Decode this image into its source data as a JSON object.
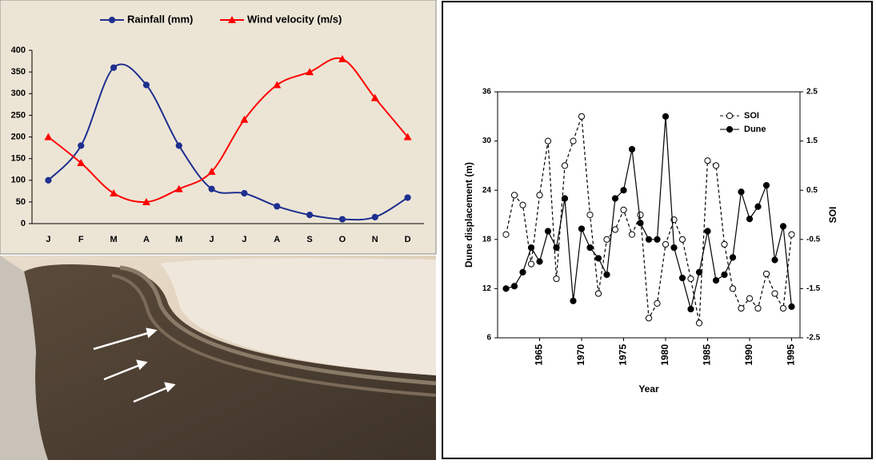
{
  "chart_data": [
    {
      "type": "line",
      "categories": [
        "J",
        "F",
        "M",
        "A",
        "M",
        "J",
        "J",
        "A",
        "S",
        "O",
        "N",
        "D"
      ],
      "series": [
        {
          "name": "Rainfall (mm)",
          "color": "#1f2f8f",
          "marker": "circle",
          "values": [
            100,
            180,
            360,
            320,
            180,
            80,
            70,
            40,
            20,
            10,
            15,
            60
          ]
        },
        {
          "name": "Wind velocity (m/s)",
          "color": "#ff0000",
          "marker": "triangle",
          "values": [
            200,
            140,
            70,
            50,
            80,
            120,
            240,
            320,
            350,
            380,
            290,
            200
          ]
        }
      ],
      "ylim": [
        0,
        400
      ],
      "yticks": [
        0,
        50,
        100,
        150,
        200,
        250,
        300,
        350,
        400
      ],
      "smooth": true,
      "legend": "top"
    },
    {
      "type": "line",
      "x": [
        1961,
        1962,
        1963,
        1964,
        1965,
        1966,
        1967,
        1968,
        1969,
        1970,
        1971,
        1972,
        1973,
        1974,
        1975,
        1976,
        1977,
        1978,
        1979,
        1980,
        1981,
        1982,
        1983,
        1984,
        1985,
        1986,
        1987,
        1988,
        1989,
        1990,
        1991,
        1992,
        1993,
        1994,
        1995
      ],
      "xlabel": "Year",
      "ylabel": "Dune displacement (m)",
      "y2label": "SOI",
      "series": [
        {
          "name": "SOI",
          "color": "#000000",
          "marker": "circle-open",
          "dash": true,
          "axis": "y2",
          "values": [
            -0.4,
            0.4,
            0.2,
            -1.0,
            0.4,
            1.5,
            -1.3,
            1.0,
            1.5,
            2.0,
            0.0,
            -1.6,
            -0.5,
            -0.3,
            0.1,
            -0.4,
            0.0,
            -2.1,
            -1.8,
            -0.6,
            -0.1,
            -0.5,
            -1.3,
            -2.2,
            1.1,
            1.0,
            -0.6,
            -1.5,
            -1.9,
            -1.7,
            -1.9,
            -1.2,
            -1.6,
            -1.9,
            -0.4
          ]
        },
        {
          "name": "Dune",
          "color": "#000000",
          "marker": "circle",
          "values": [
            12,
            12.3,
            14,
            17,
            15.3,
            19,
            17,
            23,
            10.5,
            19.3,
            17,
            15.7,
            13.7,
            23,
            24,
            29,
            20,
            18,
            18,
            33,
            17,
            13.3,
            9.5,
            14,
            19,
            13,
            13.7,
            15.8,
            23.8,
            20.5,
            22,
            24.6,
            15.5,
            19.6,
            9.8
          ]
        }
      ],
      "xlim": [
        1960,
        1996
      ],
      "xticks": [
        1965,
        1970,
        1975,
        1980,
        1985,
        1990,
        1995
      ],
      "ylim": [
        6,
        36
      ],
      "yticks": [
        6,
        12,
        18,
        24,
        30,
        36
      ],
      "y2lim": [
        -2.5,
        2.5
      ],
      "y2ticks": [
        -2.5,
        -1.5,
        -0.5,
        0.5,
        1.5,
        2.5
      ],
      "legend": "top-right"
    }
  ]
}
